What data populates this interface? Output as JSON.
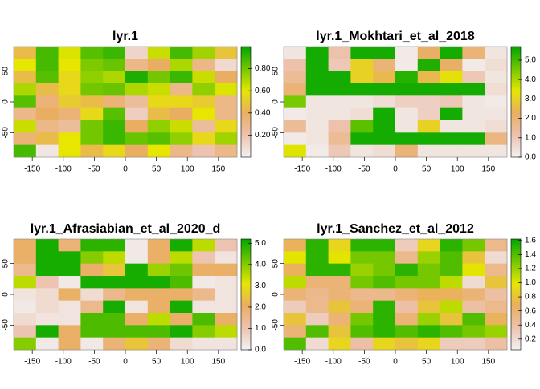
{
  "chart_data": [
    {
      "type": "heatmap",
      "title": "lyr.1",
      "xlim": [
        -180,
        180
      ],
      "ylim": [
        -90,
        90
      ],
      "xticks": [
        -150,
        -100,
        -50,
        0,
        50,
        100,
        150
      ],
      "yticks": [
        -50,
        0,
        50
      ],
      "colors": [
        "#F2F2F2",
        "#EDC2AE",
        "#EAAE62",
        "#E6E600",
        "#73C700",
        "#00A600"
      ],
      "zlim": [
        0,
        1
      ],
      "zticks": [
        {
          "value": 0.2,
          "label": "0.20"
        },
        {
          "value": 0.4,
          "label": "0.40"
        },
        {
          "value": 0.6,
          "label": "0.60"
        },
        {
          "value": 0.8,
          "label": "0.80"
        }
      ],
      "values": [
        [
          0.45,
          0.88,
          0.62,
          0.85,
          0.9,
          0.12,
          0.65,
          0.88,
          0.72,
          0.48
        ],
        [
          0.6,
          0.88,
          0.6,
          0.78,
          0.82,
          0.3,
          0.4,
          0.7,
          0.3,
          0.1
        ],
        [
          0.45,
          0.85,
          0.55,
          0.75,
          0.7,
          0.95,
          0.8,
          0.9,
          0.65,
          0.4
        ],
        [
          0.7,
          0.45,
          0.55,
          0.8,
          0.82,
          0.7,
          0.65,
          0.3,
          0.75,
          0.62
        ],
        [
          0.85,
          0.35,
          0.5,
          0.45,
          0.35,
          0.25,
          0.55,
          0.55,
          0.5,
          0.3
        ],
        [
          0.3,
          0.4,
          0.35,
          0.55,
          0.85,
          0.15,
          0.45,
          0.4,
          0.6,
          0.3
        ],
        [
          0.65,
          0.3,
          0.25,
          0.8,
          0.9,
          0.4,
          0.75,
          0.65,
          0.25,
          0.55
        ],
        [
          0.35,
          0.45,
          0.6,
          0.8,
          0.9,
          0.82,
          0.85,
          0.75,
          0.55,
          0.72
        ],
        [
          0.88,
          0.05,
          0.6,
          0.45,
          0.55,
          0.4,
          0.6,
          0.3,
          0.2,
          0.3
        ]
      ]
    },
    {
      "type": "heatmap",
      "title": "lyr.1_Mokhtari_et_al_2018",
      "xlim": [
        -180,
        180
      ],
      "ylim": [
        -90,
        90
      ],
      "xticks": [
        -150,
        -100,
        -50,
        0,
        50,
        100,
        150
      ],
      "yticks": [
        -50,
        0,
        50
      ],
      "colors": [
        "#F2F2F2",
        "#EDC2AE",
        "#EAAE62",
        "#E6E600",
        "#73C700",
        "#00A600"
      ],
      "zlim": [
        0,
        5.7
      ],
      "zticks": [
        {
          "value": 0,
          "label": "0.0"
        },
        {
          "value": 1,
          "label": "1.0"
        },
        {
          "value": 2,
          "label": "2.0"
        },
        {
          "value": 3,
          "label": "3.0"
        },
        {
          "value": 4,
          "label": "4.0"
        },
        {
          "value": 5,
          "label": "5.0"
        }
      ],
      "values": [
        [
          0.3,
          5.5,
          1.2,
          5.5,
          5.5,
          0.2,
          2.2,
          5.5,
          2.0,
          0.3
        ],
        [
          1.2,
          5.5,
          1.0,
          3.0,
          2.0,
          0.2,
          5.4,
          2.2,
          0.2,
          0.5
        ],
        [
          1.5,
          5.5,
          5.5,
          3.0,
          2.5,
          5.3,
          2.5,
          3.3,
          1.0,
          0.3
        ],
        [
          2.0,
          5.5,
          5.5,
          5.5,
          5.5,
          5.5,
          5.5,
          5.5,
          5.5,
          0.5
        ],
        [
          4.5,
          0.3,
          0.3,
          0.3,
          0.5,
          0.8,
          0.8,
          1.0,
          0.3,
          0.2
        ],
        [
          0.2,
          0.3,
          0.3,
          0.5,
          5.5,
          0.3,
          0.8,
          5.5,
          0.3,
          0.3
        ],
        [
          1.5,
          0.3,
          1.2,
          4.8,
          5.5,
          0.3,
          3.0,
          0.3,
          0.3,
          0.5
        ],
        [
          0.2,
          0.3,
          1.5,
          5.5,
          5.5,
          5.5,
          5.5,
          5.5,
          5.5,
          1.8
        ],
        [
          3.5,
          0.2,
          1.0,
          0.3,
          0.5,
          2.0,
          0.3,
          0.3,
          0.3,
          0.3
        ]
      ]
    },
    {
      "type": "heatmap",
      "title": "lyr.1_Afrasiabian_et_al_2020_d",
      "xlim": [
        -180,
        180
      ],
      "ylim": [
        -90,
        90
      ],
      "xticks": [
        -150,
        -100,
        -50,
        0,
        50,
        100,
        150
      ],
      "yticks": [
        -50,
        0,
        50
      ],
      "colors": [
        "#F2F2F2",
        "#EDC2AE",
        "#EAAE62",
        "#E6E600",
        "#73C700",
        "#00A600"
      ],
      "zlim": [
        0,
        5.2
      ],
      "zticks": [
        {
          "value": 0,
          "label": "0.0"
        },
        {
          "value": 1,
          "label": "1.0"
        },
        {
          "value": 2,
          "label": "2.0"
        },
        {
          "value": 3,
          "label": "3.0"
        },
        {
          "value": 4,
          "label": "4.0"
        },
        {
          "value": 5,
          "label": "5.0"
        }
      ],
      "values": [
        [
          2.0,
          5.0,
          1.8,
          4.8,
          4.8,
          0.2,
          2.0,
          5.0,
          3.5,
          1.0
        ],
        [
          2.0,
          5.0,
          5.0,
          4.0,
          3.5,
          0.2,
          2.0,
          3.5,
          1.0,
          0.3
        ],
        [
          1.5,
          5.0,
          5.0,
          2.0,
          2.5,
          5.0,
          3.8,
          4.2,
          2.0,
          2.0
        ],
        [
          3.5,
          1.0,
          0.2,
          5.0,
          5.0,
          5.0,
          5.0,
          4.5,
          0.2,
          0.3
        ],
        [
          0.3,
          0.5,
          2.0,
          0.5,
          1.5,
          2.0,
          2.0,
          2.0,
          1.5,
          0.3
        ],
        [
          0.2,
          0.5,
          0.3,
          1.5,
          5.0,
          0.3,
          2.0,
          5.0,
          0.3,
          0.3
        ],
        [
          0.5,
          0.3,
          0.3,
          4.5,
          4.5,
          2.0,
          3.5,
          2.0,
          4.5,
          2.0
        ],
        [
          1.0,
          5.0,
          2.0,
          4.5,
          4.5,
          4.5,
          4.5,
          5.0,
          4.0,
          3.5
        ],
        [
          4.0,
          0.2,
          2.0,
          0.2,
          1.8,
          2.5,
          1.8,
          0.5,
          0.3,
          0.3
        ]
      ]
    },
    {
      "type": "heatmap",
      "title": "lyr.1_Sanchez_et_al_2012",
      "xlim": [
        -180,
        180
      ],
      "ylim": [
        -90,
        90
      ],
      "xticks": [
        -150,
        -100,
        -50,
        0,
        50,
        100,
        150
      ],
      "yticks": [
        -50,
        0,
        50
      ],
      "colors": [
        "#F2F2F2",
        "#EDC2AE",
        "#EAAE62",
        "#E6E600",
        "#73C700",
        "#00A600"
      ],
      "zlim": [
        0.05,
        1.62
      ],
      "zticks": [
        0.2,
        0.4,
        0.6,
        0.8,
        {
          "value": 1,
          "label": "1.0"
        },
        1.2,
        1.4,
        1.6
      ],
      "values": [
        [
          0.7,
          1.5,
          0.9,
          1.5,
          1.5,
          0.3,
          0.9,
          1.5,
          1.3,
          0.5
        ],
        [
          1.0,
          1.5,
          1.0,
          1.3,
          1.3,
          0.5,
          1.2,
          1.4,
          0.8,
          0.2
        ],
        [
          0.7,
          1.5,
          1.5,
          1.2,
          1.3,
          1.5,
          1.3,
          1.4,
          1.0,
          0.5
        ],
        [
          1.1,
          0.6,
          0.6,
          1.3,
          1.4,
          1.3,
          1.3,
          1.1,
          0.2,
          0.8
        ],
        [
          0.6,
          0.5,
          0.6,
          0.5,
          0.5,
          0.6,
          0.7,
          0.7,
          0.6,
          0.4
        ],
        [
          0.3,
          0.5,
          0.8,
          0.6,
          1.5,
          0.4,
          0.8,
          1.1,
          0.4,
          0.5
        ],
        [
          0.8,
          0.3,
          0.6,
          1.3,
          1.5,
          0.6,
          1.2,
          0.8,
          1.4,
          0.7
        ],
        [
          0.6,
          1.4,
          0.8,
          1.4,
          1.5,
          1.4,
          1.5,
          1.4,
          1.3,
          1.2
        ],
        [
          1.4,
          0.2,
          0.9,
          0.4,
          0.9,
          0.8,
          0.9,
          0.3,
          0.3,
          0.4
        ]
      ]
    }
  ]
}
